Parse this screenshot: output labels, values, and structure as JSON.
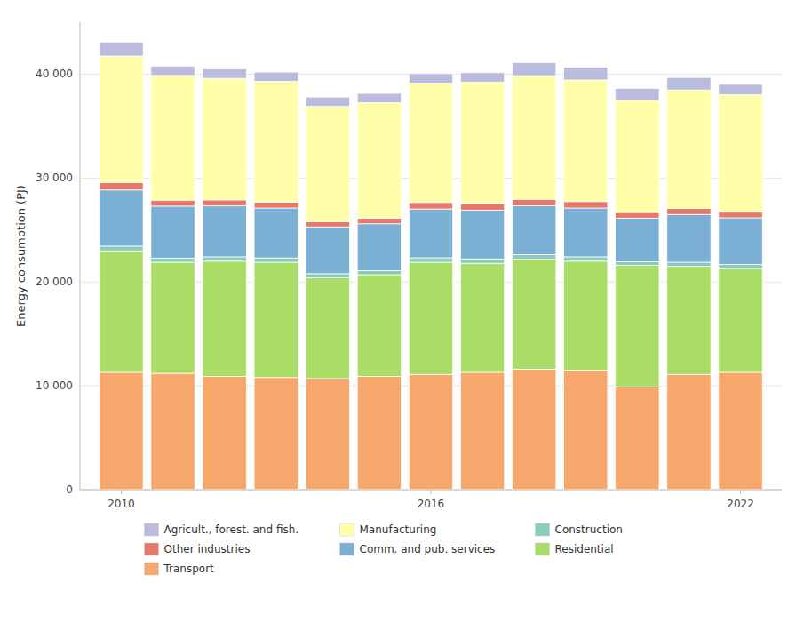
{
  "chart_data": {
    "type": "bar",
    "stacked": true,
    "x": [
      2010,
      2011,
      2012,
      2013,
      2014,
      2015,
      2016,
      2017,
      2018,
      2019,
      2020,
      2021,
      2022
    ],
    "xlim": [
      2009.2,
      2022.8
    ],
    "xticks": [
      2010,
      2016,
      2022
    ],
    "ylabel": "Energy consumption (PJ)",
    "ylim": [
      0,
      45000
    ],
    "yticks": [
      0,
      {
        "value": 10000,
        "label": "10 000"
      },
      {
        "value": 20000,
        "label": "20 000"
      },
      {
        "value": 30000,
        "label": "30 000"
      },
      {
        "value": 40000,
        "label": "40 000"
      }
    ],
    "grid": true,
    "legend": "bottom",
    "series": [
      {
        "name": "Transport",
        "color": "#F8A76C",
        "values": [
          11300,
          11200,
          10900,
          10800,
          10700,
          10900,
          11100,
          11300,
          11600,
          11500,
          9900,
          11100,
          11300
        ]
      },
      {
        "name": "Residential",
        "color": "#AADD66",
        "values": [
          11700,
          10700,
          11100,
          11100,
          9700,
          9800,
          10800,
          10500,
          10600,
          10500,
          11700,
          10400,
          10000
        ]
      },
      {
        "name": "Construction",
        "color": "#88CCBB",
        "values": [
          450,
          400,
          420,
          420,
          400,
          400,
          430,
          420,
          430,
          420,
          350,
          400,
          380
        ]
      },
      {
        "name": "Comm. and pub. services",
        "color": "#7BAFD4",
        "values": [
          5400,
          5000,
          4900,
          4800,
          4500,
          4500,
          4700,
          4700,
          4700,
          4700,
          4200,
          4600,
          4500
        ]
      },
      {
        "name": "Other industries",
        "color": "#E87869",
        "values": [
          700,
          580,
          580,
          580,
          500,
          550,
          620,
          620,
          630,
          620,
          540,
          580,
          540
        ]
      },
      {
        "name": "Manufacturing",
        "color": "#FFFFAA",
        "values": [
          12200,
          12000,
          11700,
          11600,
          11100,
          11100,
          11500,
          11700,
          11900,
          11700,
          10800,
          11400,
          11300
        ]
      },
      {
        "name": "Agricult., forest. and fish.",
        "color": "#BBBBDD",
        "values": [
          1350,
          900,
          900,
          900,
          900,
          900,
          900,
          900,
          1250,
          1250,
          1150,
          1200,
          1000
        ]
      }
    ]
  }
}
